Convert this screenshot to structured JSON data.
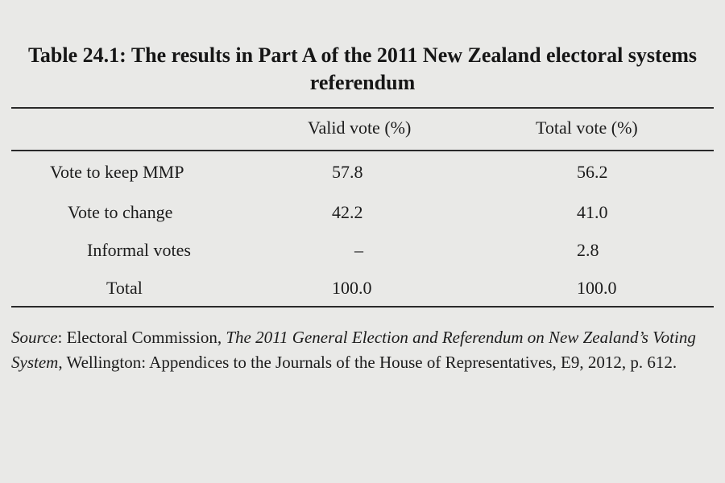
{
  "table": {
    "title": "Table 24.1: The results in Part A of the 2011 New Zealand electoral systems referendum",
    "columns": [
      "Valid vote (%)",
      "Total vote (%)"
    ],
    "rows": [
      {
        "label": "Vote to keep MMP",
        "valid": "57.8",
        "total": "56.2"
      },
      {
        "label": "Vote to change",
        "valid": "42.2",
        "total": "41.0"
      },
      {
        "label": "Informal votes",
        "valid": "–",
        "total": "2.8"
      },
      {
        "label": "Total",
        "valid": "100.0",
        "total": "100.0"
      }
    ]
  },
  "source": {
    "label": "Source",
    "before": ": Electoral Commission, ",
    "title": "The 2011 General Election and Referendum on New Zealand’s Voting System",
    "after": ", Wellington: Appendices to the Journals of the House of Representatives, E9, 2012, p. 612."
  }
}
